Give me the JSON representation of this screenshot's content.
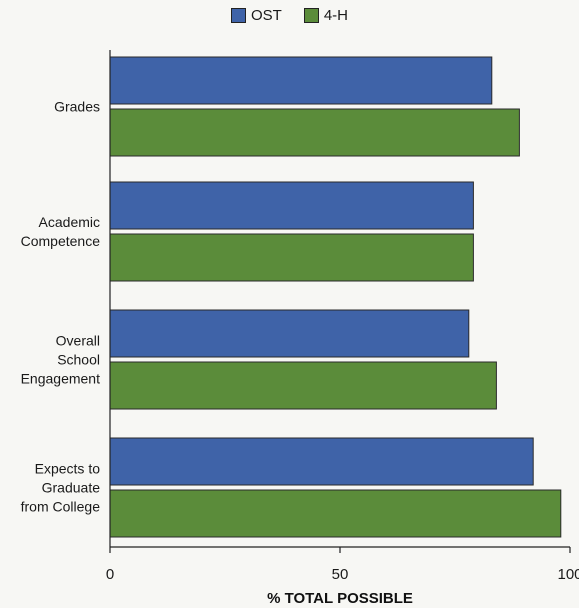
{
  "chart_data": {
    "type": "bar",
    "orientation": "horizontal",
    "categories": [
      [
        "Grades"
      ],
      [
        "Academic",
        "Competence"
      ],
      [
        "Overall",
        "School",
        "Engagement"
      ],
      [
        "Expects to",
        "Graduate",
        "from College"
      ]
    ],
    "series": [
      {
        "name": "OST",
        "color": "#3f63a8",
        "values": [
          83,
          79,
          78,
          92
        ]
      },
      {
        "name": "4-H",
        "color": "#5b8c3a",
        "values": [
          89,
          79,
          84,
          98
        ]
      }
    ],
    "xlabel": "% TOTAL POSSIBLE",
    "xlim": [
      0,
      100
    ],
    "xticks": [
      0,
      50,
      100
    ],
    "legend_position": "top",
    "grid": false
  }
}
